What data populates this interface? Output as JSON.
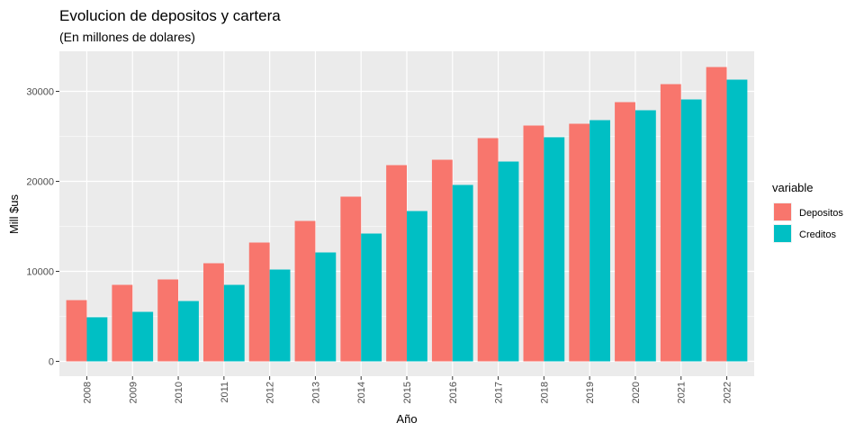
{
  "chart_data": {
    "type": "bar",
    "title": "Evolucion de depositos y cartera",
    "subtitle": "(En millones de dolares)",
    "xlabel": "Año",
    "ylabel": "Mill $us",
    "categories": [
      "2008",
      "2009",
      "2010",
      "2011",
      "2012",
      "2013",
      "2014",
      "2015",
      "2016",
      "2017",
      "2018",
      "2019",
      "2020",
      "2021",
      "2022"
    ],
    "series": [
      {
        "name": "Depositos",
        "color": "#F8766D",
        "values": [
          6800,
          8500,
          9100,
          10900,
          13200,
          15600,
          18300,
          21800,
          22400,
          24800,
          26200,
          26400,
          28800,
          30800,
          32700
        ]
      },
      {
        "name": "Creditos",
        "color": "#00BFC4",
        "values": [
          4900,
          5500,
          6700,
          8500,
          10200,
          12100,
          14200,
          16700,
          19600,
          22200,
          24900,
          26800,
          27900,
          29100,
          31300
        ]
      }
    ],
    "yticks": [
      0,
      10000,
      20000,
      30000
    ],
    "ylim": [
      -1650,
      34450
    ],
    "legend": {
      "title": "variable",
      "position": "right"
    },
    "grid": true,
    "panel_background": "#EBEBEB"
  }
}
